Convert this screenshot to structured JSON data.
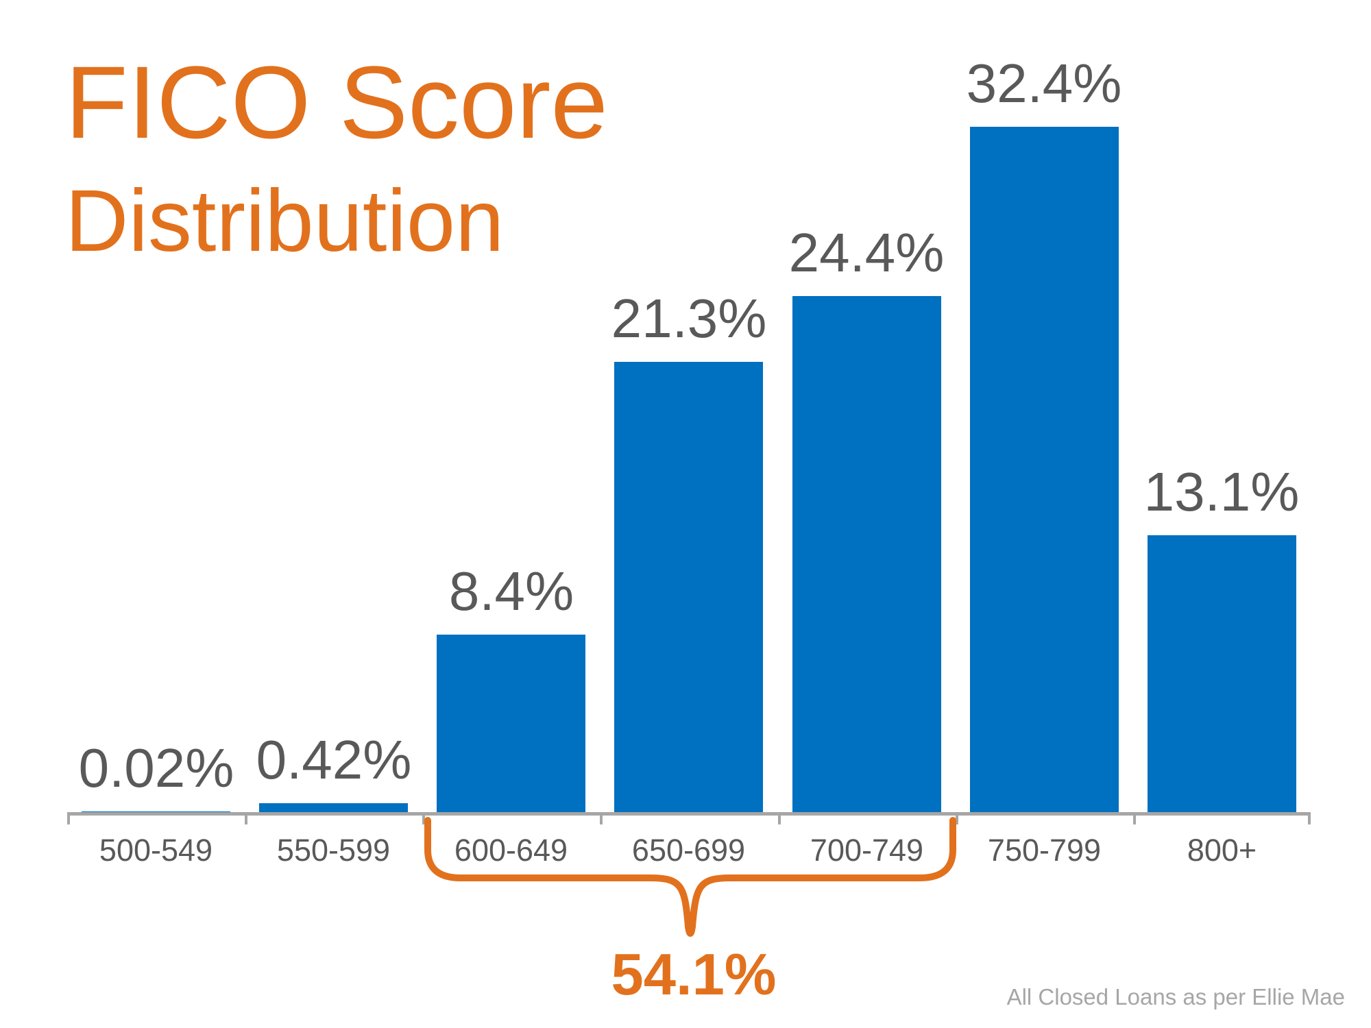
{
  "page": {
    "background": "#FFFFFF"
  },
  "title": {
    "line1": "FICO Score",
    "line2": "Distribution",
    "color": "#E2711D"
  },
  "footer": {
    "source_note": "All Closed Loans as per Ellie Mae",
    "color": "#A6A6A6"
  },
  "chart_data": {
    "type": "bar",
    "title": "FICO Score Distribution",
    "categories": [
      "500-549",
      "550-599",
      "600-649",
      "650-699",
      "700-749",
      "750-799",
      "800+"
    ],
    "values": [
      0.02,
      0.42,
      8.4,
      21.3,
      24.4,
      32.4,
      13.1
    ],
    "value_labels": [
      "0.02%",
      "0.42%",
      "8.4%",
      "21.3%",
      "24.4%",
      "32.4%",
      "13.1%"
    ],
    "xlabel": "",
    "ylabel": "",
    "ylim": [
      0,
      34
    ],
    "grid": false,
    "legend": "none",
    "y_axis_shown": false,
    "bar_color": "#0070C0",
    "value_label_color": "#595959",
    "category_label_color": "#595959",
    "axis_color": "#A6A6A6",
    "annotation": {
      "text": "54.1%",
      "meaning": "sum of 600-649, 650-699 and 700-749 shares",
      "categories_spanned": [
        "600-649",
        "650-699",
        "700-749"
      ],
      "color": "#E2711D",
      "shape": "curly-brace"
    }
  }
}
